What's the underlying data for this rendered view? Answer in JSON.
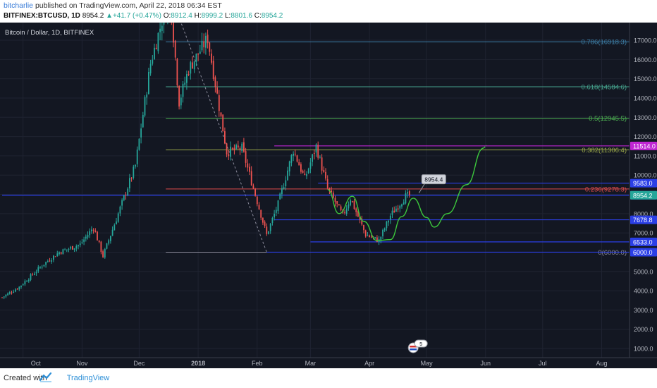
{
  "header": {
    "author": "bitcharlie",
    "published": "published on TradingView.com, April 22, 2018 06:34 EST",
    "symbol": "BITFINEX:BTCUSD, 1D",
    "last": "8954.2",
    "change_arrow": "▲",
    "change": "+41.7 (+0.47%)",
    "o_label": "O:",
    "o": "8912.4",
    "h_label": "H:",
    "h": "8999.2",
    "l_label": "L:",
    "l": "8801.6",
    "c_label": "C:",
    "c": "8954.2"
  },
  "footer": {
    "created": "Created with",
    "brand": "TradingView",
    "logo_icon": "tradingview-logo-icon"
  },
  "colors": {
    "background": "#131722",
    "up": "#26a69a",
    "down": "#ef5350",
    "curve": "#3cc83c"
  },
  "chart_data": {
    "type": "candlestick",
    "title": "Bitcoin / Dollar, 1D, BITFINEX",
    "yticks": [
      1000,
      2000,
      3000,
      4000,
      5000,
      6000,
      7000,
      8000,
      9000,
      10000,
      11000,
      12000,
      13000,
      14000,
      15000,
      16000,
      17000
    ],
    "ytick_labels": [
      "1000.0",
      "2000.0",
      "3000.0",
      "4000.0",
      "5000.0",
      "6000.0",
      "7000.0",
      "8000.0",
      "9000.0",
      "10000.0",
      "11000.0",
      "12000.0",
      "13000.0",
      "14000.0",
      "15000.0",
      "16000.0",
      "17000.0"
    ],
    "xticks": [
      {
        "label": "Oct",
        "date": "2017-10-01"
      },
      {
        "label": "Nov",
        "date": "2017-11-01"
      },
      {
        "label": "Dec",
        "date": "2017-12-01"
      },
      {
        "label": "2018",
        "date": "2018-01-01"
      },
      {
        "label": "Feb",
        "date": "2018-02-01"
      },
      {
        "label": "Mar",
        "date": "2018-03-01"
      },
      {
        "label": "Apr",
        "date": "2018-04-01"
      },
      {
        "label": "May",
        "date": "2018-05-01"
      },
      {
        "label": "Jun",
        "date": "2018-06-01"
      },
      {
        "label": "Jul",
        "date": "2018-07-01"
      },
      {
        "label": "Aug",
        "date": "2018-08-01"
      }
    ],
    "price_path": [
      [
        "2017-09-20",
        3650
      ],
      [
        "2017-09-29",
        4200
      ],
      [
        "2017-10-12",
        5400
      ],
      [
        "2017-10-20",
        6000
      ],
      [
        "2017-10-31",
        6400
      ],
      [
        "2017-11-07",
        7300
      ],
      [
        "2017-11-12",
        5800
      ],
      [
        "2017-11-20",
        8000
      ],
      [
        "2017-11-29",
        10500
      ],
      [
        "2017-12-07",
        15800
      ],
      [
        "2017-12-17",
        19500
      ],
      [
        "2017-12-22",
        13800
      ],
      [
        "2017-12-27",
        15500
      ],
      [
        "2018-01-06",
        17100
      ],
      [
        "2018-01-16",
        11200
      ],
      [
        "2018-01-24",
        11400
      ],
      [
        "2018-02-06",
        6900
      ],
      [
        "2018-02-12",
        8500
      ],
      [
        "2018-02-20",
        11300
      ],
      [
        "2018-02-26",
        9800
      ],
      [
        "2018-03-04",
        11500
      ],
      [
        "2018-03-10",
        9300
      ],
      [
        "2018-03-18",
        7900
      ],
      [
        "2018-03-22",
        8800
      ],
      [
        "2018-03-30",
        6900
      ],
      [
        "2018-04-06",
        6600
      ],
      [
        "2018-04-12",
        7900
      ],
      [
        "2018-04-20",
        8900
      ],
      [
        "2018-04-22",
        8954
      ]
    ],
    "projection": [
      [
        "2018-03-10",
        9250
      ],
      [
        "2018-03-16",
        8000
      ],
      [
        "2018-03-23",
        8900
      ],
      [
        "2018-03-29",
        7600
      ],
      [
        "2018-04-05",
        6600
      ],
      [
        "2018-04-12",
        6650
      ],
      [
        "2018-04-18",
        7850
      ],
      [
        "2018-04-24",
        8800
      ],
      [
        "2018-05-01",
        7800
      ],
      [
        "2018-05-05",
        7300
      ],
      [
        "2018-05-12",
        8000
      ],
      [
        "2018-05-22",
        9500
      ],
      [
        "2018-05-31",
        11400
      ]
    ],
    "fib_levels": [
      {
        "label": "0.786(16918.3)",
        "price": 16918.3,
        "color": "#3d7ea6"
      },
      {
        "label": "0.618(14584.6)",
        "price": 14584.6,
        "color": "#45a28c"
      },
      {
        "label": "0.5(12945.5)",
        "price": 12945.5,
        "color": "#4caf50"
      },
      {
        "label": "0.382(11306.4)",
        "price": 11306.4,
        "color": "#9aa84a"
      },
      {
        "label": "0.236(9278.3)",
        "price": 9278.3,
        "color": "#e04b4b"
      },
      {
        "label": "0(6000.0)",
        "price": 6000.0,
        "color": "#8c8c9c"
      }
    ],
    "hlines": [
      {
        "price": 11514.0,
        "label": "11514.0",
        "color": "#c026d3"
      },
      {
        "price": 9583.0,
        "label": "9583.0",
        "color": "#2b3fe6"
      },
      {
        "price": 8952.9,
        "label": "8952.9",
        "color": "#2b3fe6"
      },
      {
        "price": 7678.8,
        "label": "7678.8",
        "color": "#2b3fe6"
      },
      {
        "price": 6533.0,
        "label": "6533.0",
        "color": "#2b3fe6"
      },
      {
        "price": 6000.0,
        "label": "6000.0",
        "color": "#2b3fe6"
      }
    ],
    "last_price": {
      "price": 8954.2,
      "label": "8954.2",
      "color": "#26a69a"
    },
    "callout": {
      "price": 9583.0,
      "label": "8954.4",
      "date": "2018-04-27"
    },
    "event_badge": {
      "date": "2018-04-24",
      "label": "5"
    }
  }
}
